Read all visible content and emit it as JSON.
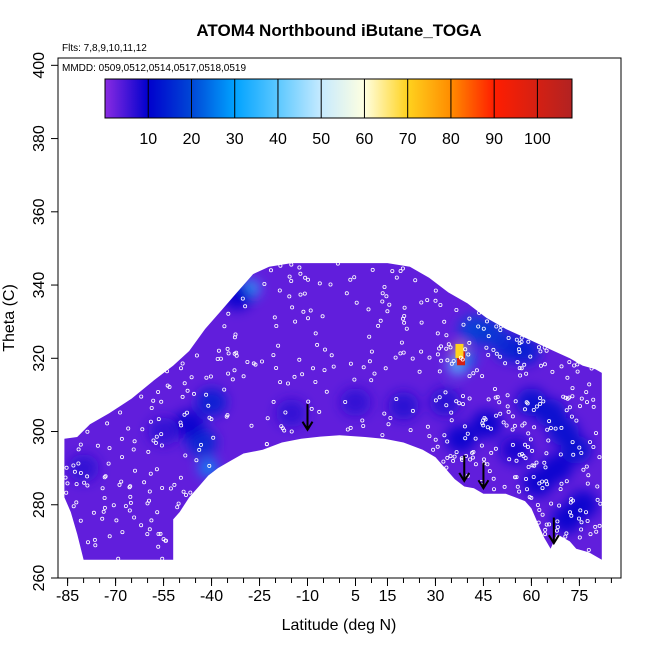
{
  "chart_data": {
    "type": "heatmap",
    "title": "ATOM4 Northbound iButane_TOGA",
    "subtitle_flights": "Flts: 7,8,9,10,11,12",
    "subtitle_dates": "MMDD: 0509,0512,0514,0517,0518,0519",
    "xlabel": "Latitude (deg N)",
    "ylabel": "Theta (C)",
    "xlim": [
      -88,
      88
    ],
    "ylim": [
      260,
      402
    ],
    "x_ticks": [
      -85,
      -70,
      -55,
      -40,
      -25,
      -10,
      5,
      15,
      30,
      45,
      60,
      75
    ],
    "x_tick_labels": [
      "-85",
      "-70",
      "-55",
      "-40",
      "-25",
      "-10",
      "5",
      "15",
      "30",
      "45",
      "60",
      "75"
    ],
    "y_ticks": [
      260,
      280,
      300,
      320,
      340,
      360,
      380,
      400
    ],
    "y_tick_labels": [
      "260",
      "280",
      "300",
      "320",
      "340",
      "360",
      "380",
      "400"
    ],
    "colorbar": {
      "min": 0,
      "max": 108,
      "ticks": [
        10,
        20,
        30,
        40,
        50,
        60,
        70,
        80,
        90,
        100
      ],
      "tick_labels": [
        "10",
        "20",
        "30",
        "40",
        "50",
        "60",
        "70",
        "80",
        "90",
        "100"
      ],
      "stops": [
        {
          "v": 0,
          "color": "#8a2be2"
        },
        {
          "v": 10,
          "color": "#0000cd"
        },
        {
          "v": 20,
          "color": "#0047d6"
        },
        {
          "v": 30,
          "color": "#00a2ff"
        },
        {
          "v": 40,
          "color": "#5cc8ff"
        },
        {
          "v": 50,
          "color": "#c6eaff"
        },
        {
          "v": 60,
          "color": "#ffffe0"
        },
        {
          "v": 70,
          "color": "#ffd21e"
        },
        {
          "v": 80,
          "color": "#ff8c00"
        },
        {
          "v": 90,
          "color": "#ff1e00"
        },
        {
          "v": 108,
          "color": "#b22222"
        }
      ]
    },
    "background_value": 3,
    "domain_outline": [
      [
        -86,
        298
      ],
      [
        -82,
        298.5
      ],
      [
        -78,
        302
      ],
      [
        -72,
        305
      ],
      [
        -65,
        309
      ],
      [
        -58,
        314
      ],
      [
        -52,
        318
      ],
      [
        -47,
        322
      ],
      [
        -42,
        328
      ],
      [
        -37,
        333
      ],
      [
        -32,
        338
      ],
      [
        -27,
        343
      ],
      [
        -22,
        345
      ],
      [
        -15,
        346
      ],
      [
        -5,
        346
      ],
      [
        5,
        346
      ],
      [
        15,
        346
      ],
      [
        22,
        345
      ],
      [
        28,
        342
      ],
      [
        34,
        338
      ],
      [
        40,
        335
      ],
      [
        46,
        331
      ],
      [
        52,
        328
      ],
      [
        57,
        326
      ],
      [
        62,
        324
      ],
      [
        67,
        322
      ],
      [
        72,
        320
      ],
      [
        76,
        318
      ],
      [
        80,
        317
      ],
      [
        82,
        316
      ],
      [
        82,
        265
      ],
      [
        78,
        267
      ],
      [
        74,
        268
      ],
      [
        72,
        270
      ],
      [
        70,
        271
      ],
      [
        68,
        272
      ],
      [
        66,
        268
      ],
      [
        64,
        271
      ],
      [
        62,
        275
      ],
      [
        60,
        279
      ],
      [
        58,
        281
      ],
      [
        55,
        282
      ],
      [
        52,
        283
      ],
      [
        48,
        283
      ],
      [
        45,
        283
      ],
      [
        42,
        284.5
      ],
      [
        39,
        285
      ],
      [
        36,
        287
      ],
      [
        33,
        290
      ],
      [
        30,
        293
      ],
      [
        26,
        295
      ],
      [
        20,
        297
      ],
      [
        14,
        298
      ],
      [
        8,
        298.5
      ],
      [
        0,
        299
      ],
      [
        -6,
        298.6
      ],
      [
        -12,
        298
      ],
      [
        -18,
        297
      ],
      [
        -24,
        295
      ],
      [
        -30,
        294
      ],
      [
        -34,
        292
      ],
      [
        -38,
        290
      ],
      [
        -41,
        288
      ],
      [
        -44,
        285
      ],
      [
        -47,
        282
      ],
      [
        -50,
        278
      ],
      [
        -52,
        276
      ],
      [
        -52,
        265
      ],
      [
        -80,
        265
      ],
      [
        -82,
        272
      ],
      [
        -84,
        278
      ],
      [
        -86,
        282
      ]
    ],
    "blobs": [
      {
        "lat": 38,
        "theta": 320,
        "value": 100
      },
      {
        "lat": 37.5,
        "theta": 322,
        "value": 70
      },
      {
        "lat": 37,
        "theta": 318,
        "value": 40
      },
      {
        "lat": 39.5,
        "theta": 320,
        "value": 25
      },
      {
        "lat": 42,
        "theta": 328,
        "value": 20
      },
      {
        "lat": 47,
        "theta": 327,
        "value": 18
      },
      {
        "lat": 53,
        "theta": 323,
        "value": 16
      },
      {
        "lat": 58,
        "theta": 322,
        "value": 14
      },
      {
        "lat": 60,
        "theta": 308,
        "value": 12
      },
      {
        "lat": 66,
        "theta": 305,
        "value": 12
      },
      {
        "lat": 70,
        "theta": 300,
        "value": 12
      },
      {
        "lat": 74,
        "theta": 295,
        "value": 12
      },
      {
        "lat": 68,
        "theta": 290,
        "value": 11
      },
      {
        "lat": 76,
        "theta": 280,
        "value": 10
      },
      {
        "lat": 71,
        "theta": 276,
        "value": 10
      },
      {
        "lat": 62,
        "theta": 286,
        "value": 11
      },
      {
        "lat": 55,
        "theta": 295,
        "value": 9
      },
      {
        "lat": 46,
        "theta": 302,
        "value": 10
      },
      {
        "lat": 38,
        "theta": 298,
        "value": 10
      },
      {
        "lat": 33,
        "theta": 308,
        "value": 8
      },
      {
        "lat": 20,
        "theta": 307,
        "value": 8
      },
      {
        "lat": 5,
        "theta": 308,
        "value": 7
      },
      {
        "lat": -15,
        "theta": 305,
        "value": 7
      },
      {
        "lat": -40,
        "theta": 308,
        "value": 14
      },
      {
        "lat": -43,
        "theta": 297,
        "value": 16
      },
      {
        "lat": -41,
        "theta": 290,
        "value": 28
      },
      {
        "lat": -47,
        "theta": 302,
        "value": 10
      },
      {
        "lat": -28,
        "theta": 339,
        "value": 35
      },
      {
        "lat": -32,
        "theta": 337,
        "value": 10
      },
      {
        "lat": -55,
        "theta": 300,
        "value": 7
      },
      {
        "lat": -80,
        "theta": 290,
        "value": 7
      }
    ],
    "arrows": [
      {
        "lat": -10,
        "theta": 304
      },
      {
        "lat": 39,
        "theta": 290
      },
      {
        "lat": 45,
        "theta": 288
      },
      {
        "lat": 67,
        "theta": 273
      }
    ]
  }
}
